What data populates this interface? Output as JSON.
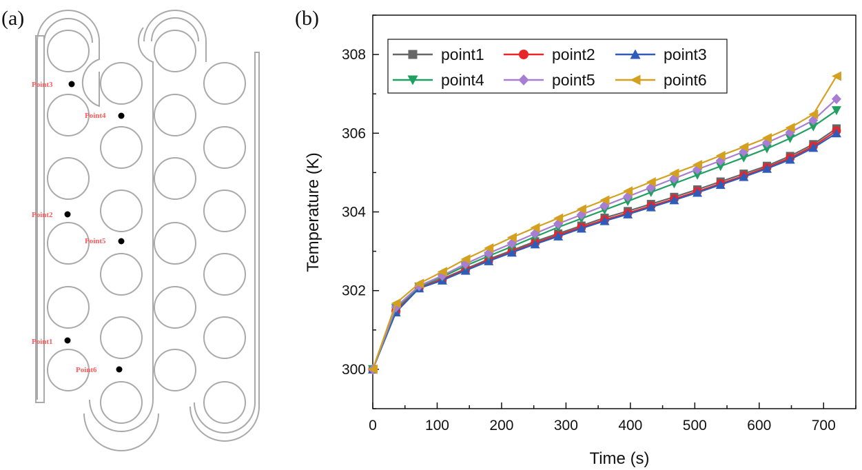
{
  "panel_a": {
    "tag": "(a)",
    "points": [
      {
        "label": "Point3"
      },
      {
        "label": "Point4"
      },
      {
        "label": "Point2"
      },
      {
        "label": "Point5"
      },
      {
        "label": "Point1"
      },
      {
        "label": "Point6"
      }
    ]
  },
  "panel_b": {
    "tag": "(b)"
  },
  "chart_data": {
    "type": "line",
    "title": "",
    "xlabel": "Time (s)",
    "ylabel": "Temperature (K)",
    "xlim": [
      0,
      750
    ],
    "ylim": [
      299,
      309
    ],
    "xticks": [
      0,
      100,
      200,
      300,
      400,
      500,
      600,
      700
    ],
    "yticks": [
      300,
      302,
      304,
      306,
      308
    ],
    "legend_position": "top-left",
    "x": [
      0,
      36,
      72,
      108,
      144,
      180,
      216,
      252,
      288,
      324,
      360,
      396,
      432,
      468,
      504,
      540,
      576,
      612,
      648,
      684,
      720
    ],
    "series": [
      {
        "name": "point1",
        "color": "#666666",
        "marker": "square",
        "values": [
          300.0,
          301.5,
          302.08,
          302.3,
          302.55,
          302.8,
          303.02,
          303.25,
          303.45,
          303.65,
          303.85,
          304.02,
          304.2,
          304.38,
          304.57,
          304.77,
          304.97,
          305.17,
          305.42,
          305.72,
          306.12
        ]
      },
      {
        "name": "point2",
        "color": "#e8262a",
        "marker": "circle",
        "values": [
          300.0,
          301.48,
          302.07,
          302.28,
          302.53,
          302.77,
          302.99,
          303.21,
          303.41,
          303.61,
          303.8,
          303.97,
          304.15,
          304.33,
          304.52,
          304.72,
          304.92,
          305.13,
          305.37,
          305.67,
          306.06
        ]
      },
      {
        "name": "point3",
        "color": "#2e5cb8",
        "marker": "triangle-up",
        "values": [
          300.0,
          301.45,
          302.06,
          302.26,
          302.51,
          302.75,
          302.97,
          303.18,
          303.38,
          303.58,
          303.77,
          303.94,
          304.12,
          304.3,
          304.49,
          304.69,
          304.89,
          305.1,
          305.33,
          305.63,
          306.0
        ]
      },
      {
        "name": "point4",
        "color": "#20a060",
        "marker": "triangle-down",
        "values": [
          300.0,
          301.55,
          302.1,
          302.35,
          302.63,
          302.88,
          303.12,
          303.37,
          303.61,
          303.83,
          304.05,
          304.27,
          304.5,
          304.72,
          304.94,
          305.16,
          305.38,
          305.61,
          305.87,
          306.17,
          306.58
        ]
      },
      {
        "name": "point5",
        "color": "#a77ed1",
        "marker": "diamond",
        "values": [
          300.0,
          301.58,
          302.12,
          302.38,
          302.68,
          302.95,
          303.2,
          303.45,
          303.7,
          303.93,
          304.16,
          304.39,
          304.62,
          304.85,
          305.08,
          305.3,
          305.53,
          305.76,
          306.02,
          306.33,
          306.87
        ]
      },
      {
        "name": "point6",
        "color": "#d4a020",
        "marker": "triangle-left",
        "values": [
          300.0,
          301.68,
          302.18,
          302.48,
          302.8,
          303.08,
          303.35,
          303.6,
          303.84,
          304.07,
          304.3,
          304.53,
          304.76,
          304.98,
          305.2,
          305.43,
          305.65,
          305.88,
          306.14,
          306.48,
          307.45
        ]
      }
    ]
  }
}
